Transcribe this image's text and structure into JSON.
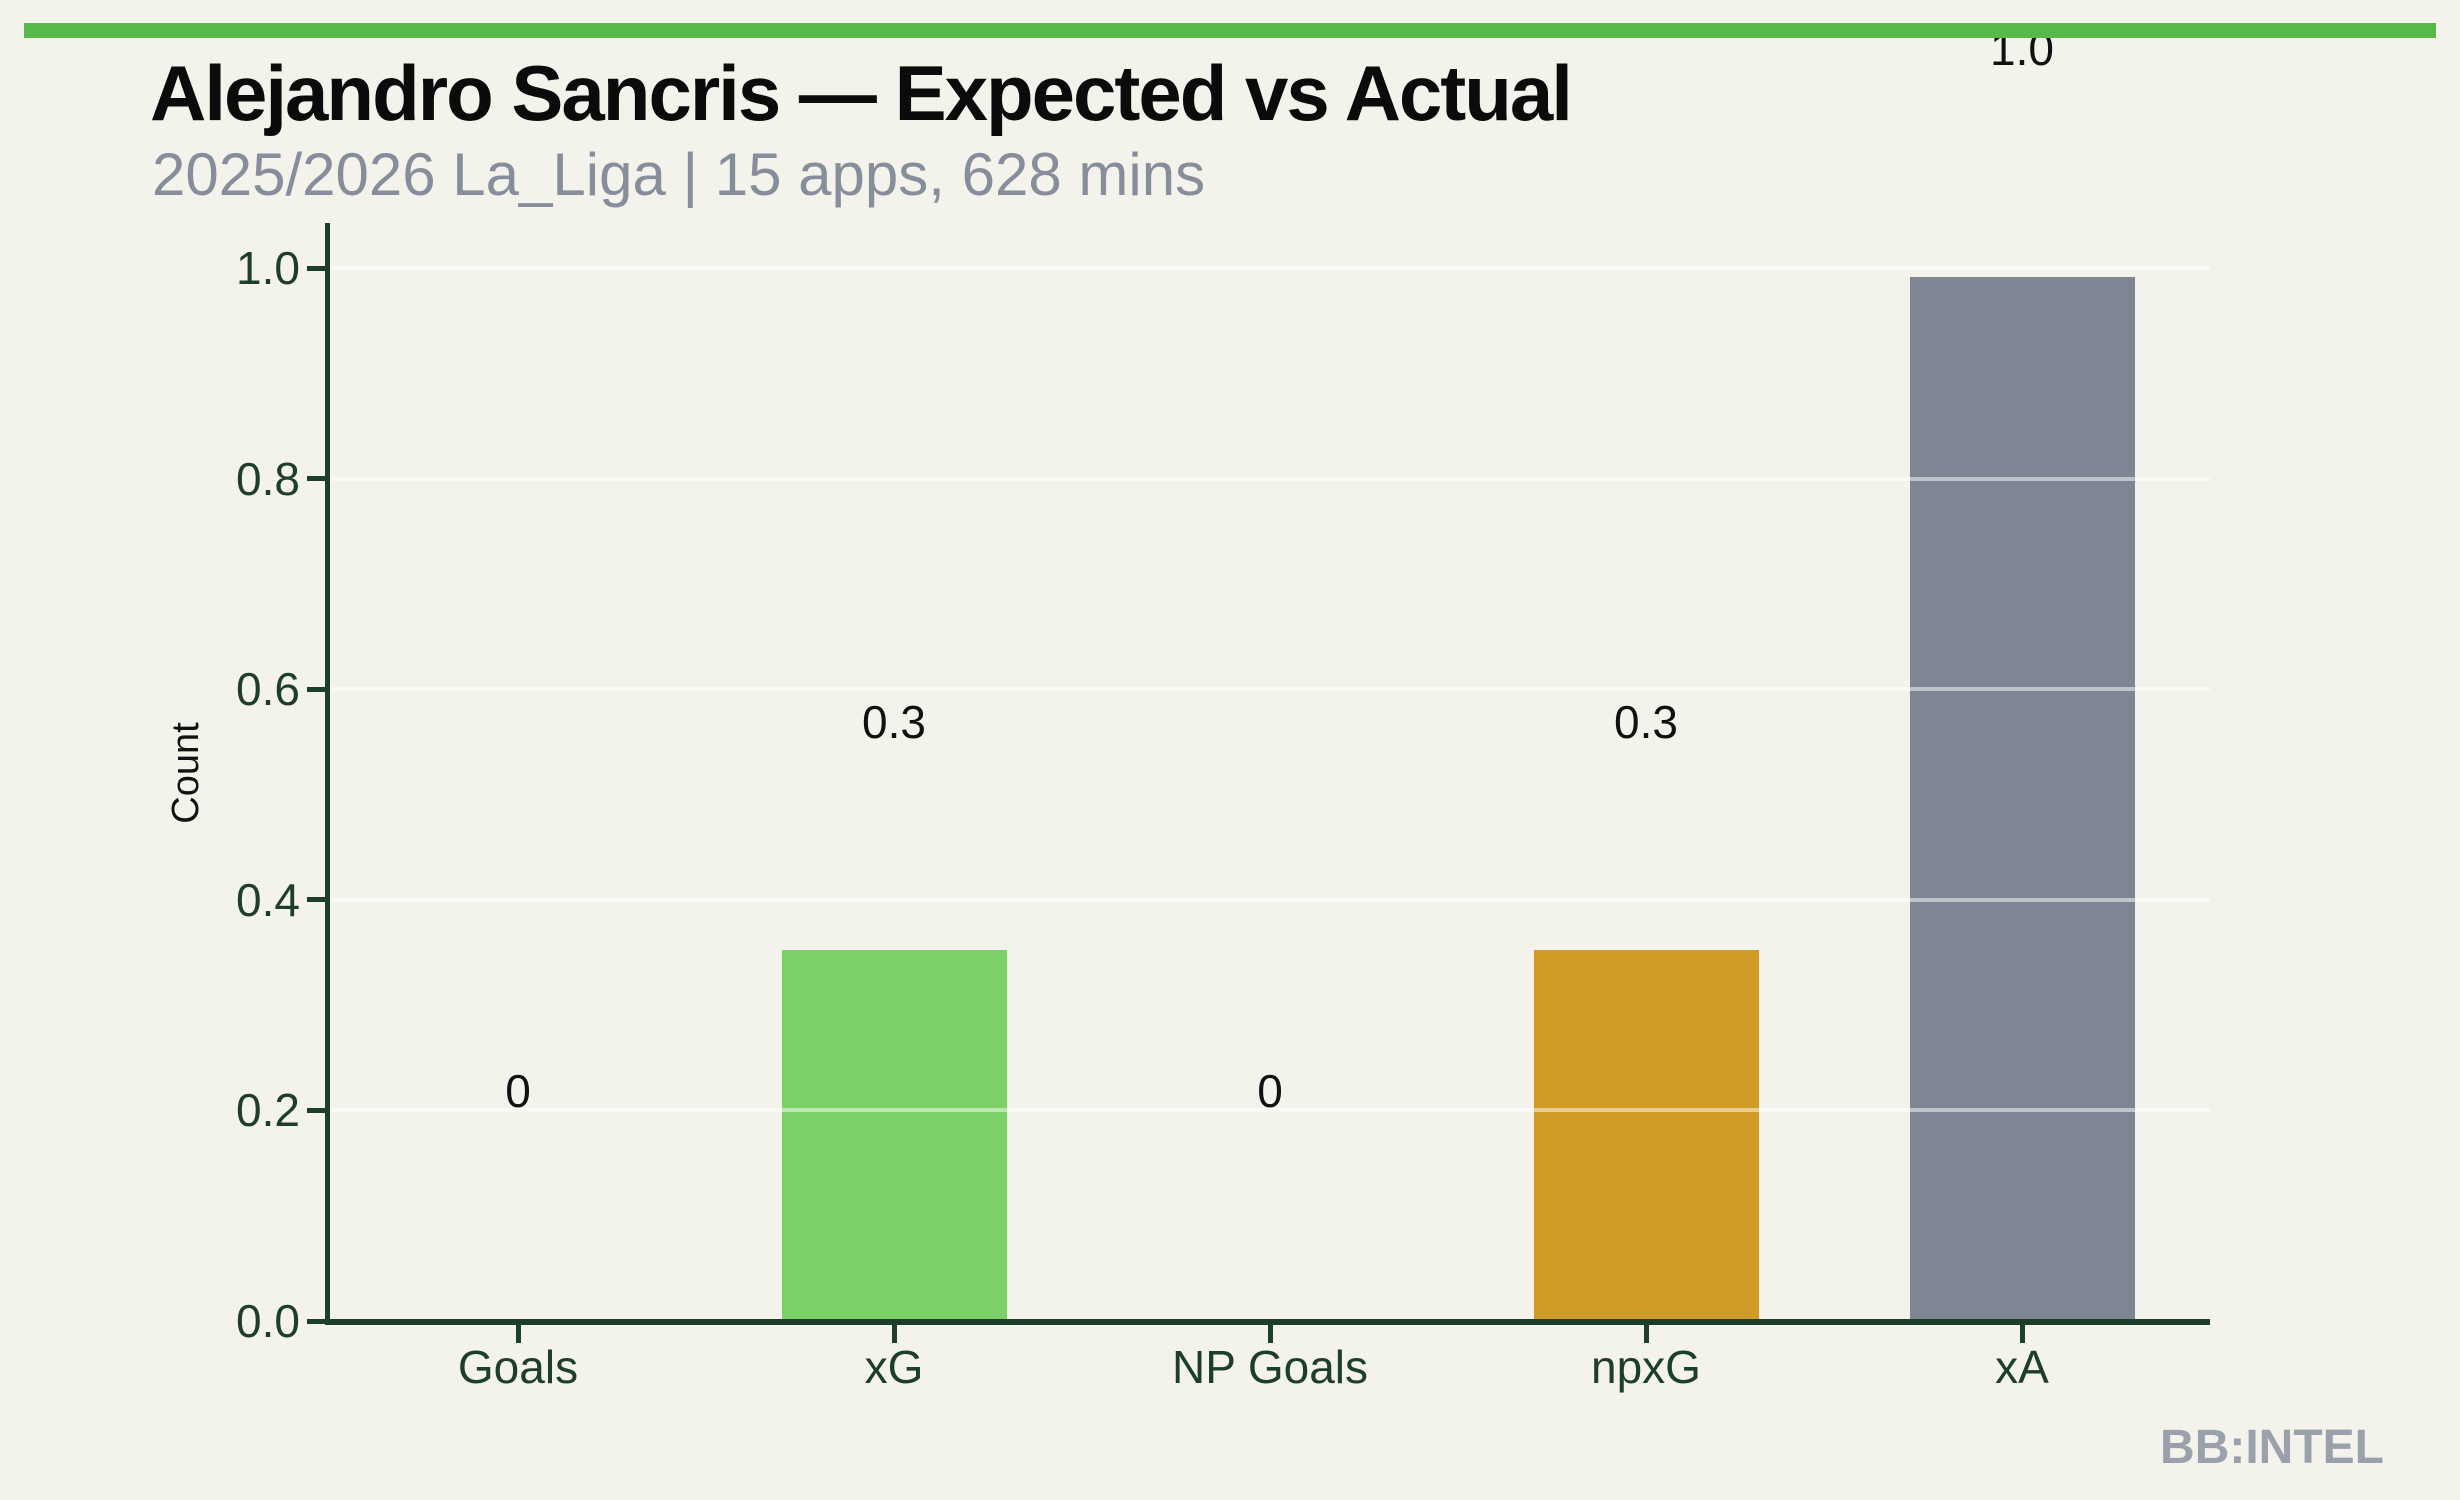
{
  "header": {
    "title": "Alejandro Sancris — Expected vs Actual",
    "subtitle": "2025/2026 La_Liga | 15 apps, 628 mins"
  },
  "footer": {
    "watermark": "BB:INTEL"
  },
  "colors": {
    "background": "#f3f3ec",
    "accent_stripe": "#57b84b",
    "axis": "#1d3e28",
    "title_text": "#0b0b0b",
    "subtitle_text": "#878e9b",
    "watermark_text": "#9ba1ac",
    "bar_green": "#7ad165",
    "bar_orange": "#d29b25",
    "bar_gray": "#7e8694",
    "gridline": "rgba(255,255,255,0.5)"
  },
  "chart_data": {
    "type": "bar",
    "title": "Alejandro Sancris — Expected vs Actual",
    "subtitle": "2025/2026 La_Liga | 15 apps, 628 mins",
    "categories": [
      "Goals",
      "xG",
      "NP Goals",
      "npxG",
      "xA"
    ],
    "values": [
      0,
      0.35,
      0,
      0.35,
      0.99
    ],
    "bar_labels": [
      "0",
      "0.3",
      "0",
      "0.3",
      "1.0"
    ],
    "bar_colors": [
      "#7ad165",
      "#7ad165",
      "#d29b25",
      "#d29b25",
      "#7e8694"
    ],
    "ylabel": "Count",
    "xlabel": "",
    "ylim": [
      0.0,
      1.04
    ],
    "yticks": [
      0.0,
      0.2,
      0.4,
      0.6,
      0.8,
      1.0
    ],
    "ytick_labels": [
      "0.0",
      "0.2",
      "0.4",
      "0.6",
      "0.8",
      "1.0"
    ],
    "grid": "horizontal, faint white, drawn over bars",
    "legend": "none"
  }
}
